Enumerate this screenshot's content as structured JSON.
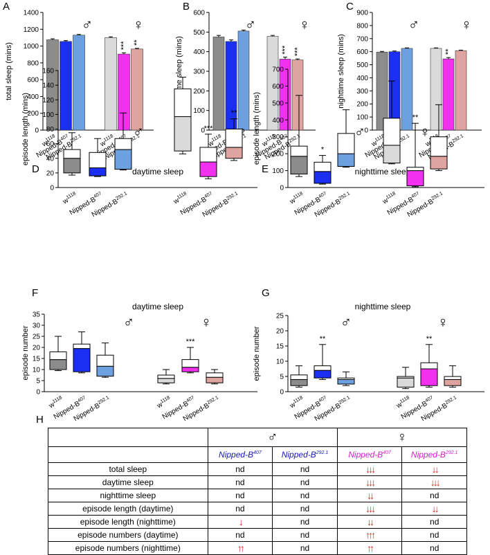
{
  "table": {
    "panel_letter": "H",
    "male_symbol": "♂",
    "female_symbol": "♀",
    "column_genes": [
      {
        "base": "Nipped-B",
        "sup": "407",
        "group": "male"
      },
      {
        "base": "Nipped-B",
        "sup": "292.1",
        "group": "male"
      },
      {
        "base": "Nipped-B",
        "sup": "407",
        "group": "female"
      },
      {
        "base": "Nipped-B",
        "sup": "292.1",
        "group": "female"
      }
    ],
    "rows": [
      {
        "label": "total sleep",
        "cells": [
          "nd",
          "nd",
          "↓↓↓",
          "↓↓"
        ]
      },
      {
        "label": "daytime sleep",
        "cells": [
          "nd",
          "nd",
          "↓↓↓",
          "↓↓↓"
        ]
      },
      {
        "label": "nighttime sleep",
        "cells": [
          "nd",
          "nd",
          "↓↓",
          "nd"
        ]
      },
      {
        "label": "episode length (daytime)",
        "cells": [
          "nd",
          "nd",
          "↓↓↓",
          "↓↓"
        ]
      },
      {
        "label": "episode length (nighttime)",
        "cells": [
          "↓",
          "nd",
          "↓↓",
          "nd"
        ]
      },
      {
        "label": "episode numbers (daytime)",
        "cells": [
          "nd",
          "nd",
          "↑↑↑",
          "nd"
        ]
      },
      {
        "label": "episode numbers (nighttime)",
        "cells": [
          "↑↑",
          "nd",
          "↑↑",
          "nd"
        ]
      }
    ]
  },
  "chart_data": [
    {
      "panel": "A",
      "type": "bar",
      "title": "",
      "ylabel": "total sleep (mins)",
      "ylim": [
        0,
        1400
      ],
      "yticks": [
        0,
        200,
        400,
        600,
        800,
        1000,
        1200,
        1400
      ],
      "groups": [
        {
          "symbol": "♂",
          "categories": [
            "w1118",
            "Nipped-B407",
            "Nipped-B292.1"
          ],
          "values": [
            1075,
            1055,
            1130
          ],
          "errors": [
            12,
            10,
            8
          ],
          "significance": [
            "",
            "",
            ""
          ]
        },
        {
          "symbol": "♀",
          "categories": [
            "w1118",
            "Nipped-B407",
            "Nipped-B292.1"
          ],
          "values": [
            1100,
            905,
            965
          ],
          "errors": [
            10,
            15,
            8
          ],
          "significance": [
            "",
            "***",
            "**"
          ]
        }
      ]
    },
    {
      "panel": "B",
      "type": "bar",
      "title": "",
      "ylabel": "daytime sleep (mins)",
      "ylim": [
        0,
        600
      ],
      "yticks": [
        0,
        100,
        200,
        300,
        400,
        500,
        600
      ],
      "groups": [
        {
          "symbol": "♂",
          "categories": [
            "w1118",
            "Nipped-B407",
            "Nipped-B292.1"
          ],
          "values": [
            475,
            452,
            505
          ],
          "errors": [
            8,
            8,
            5
          ],
          "significance": [
            "",
            "",
            ""
          ]
        },
        {
          "symbol": "♀",
          "categories": [
            "w1118",
            "Nipped-B407",
            "Nipped-B292.1"
          ],
          "values": [
            478,
            362,
            358
          ],
          "errors": [
            5,
            10,
            5
          ],
          "significance": [
            "",
            "***",
            "***"
          ]
        }
      ]
    },
    {
      "panel": "C",
      "type": "bar",
      "title": "",
      "ylabel": "nighttime sleep (mins)",
      "ylim": [
        0,
        900
      ],
      "yticks": [
        0,
        100,
        200,
        300,
        400,
        500,
        600,
        700,
        800,
        900
      ],
      "groups": [
        {
          "symbol": "♂",
          "categories": [
            "w1118",
            "Nipped-B407",
            "Nipped-B292.1"
          ],
          "values": [
            597,
            600,
            625
          ],
          "errors": [
            5,
            5,
            4
          ],
          "significance": [
            "",
            "",
            ""
          ]
        },
        {
          "symbol": "♀",
          "categories": [
            "w1118",
            "Nipped-B407",
            "Nipped-B292.1"
          ],
          "values": [
            625,
            545,
            608
          ],
          "errors": [
            4,
            10,
            4
          ],
          "significance": [
            "",
            "**",
            ""
          ]
        }
      ]
    },
    {
      "panel": "D",
      "type": "box",
      "title": "daytime sleep",
      "ylabel": "episode length (mins)",
      "ylim": [
        0,
        160
      ],
      "yticks": [
        0,
        20,
        40,
        60,
        80,
        100,
        120,
        140,
        160
      ],
      "groups": [
        {
          "symbol": "♂",
          "categories": [
            "w1118",
            "Nipped-B407",
            "Nipped-B292.1"
          ],
          "boxes": [
            {
              "min": 17,
              "q1": 20,
              "median": 40,
              "q3": 52,
              "max": 75,
              "sig": ""
            },
            {
              "min": 15,
              "q1": 16,
              "median": 27,
              "q3": 48,
              "max": 67,
              "sig": ""
            },
            {
              "min": 24,
              "q1": 25,
              "median": 52,
              "q3": 67,
              "max": 102,
              "sig": ""
            }
          ]
        },
        {
          "symbol": "♀",
          "categories": [
            "w1118",
            "Nipped-B407",
            "Nipped-B292.1"
          ],
          "boxes": [
            {
              "min": 46,
              "q1": 50,
              "median": 97,
              "q3": 135,
              "max": 151,
              "sig": ""
            },
            {
              "min": 12,
              "q1": 15,
              "median": 35,
              "q3": 55,
              "max": 73,
              "sig": "***"
            },
            {
              "min": 37,
              "q1": 40,
              "median": 55,
              "q3": 80,
              "max": 94,
              "sig": "**"
            }
          ]
        }
      ]
    },
    {
      "panel": "E",
      "type": "box",
      "title": "nighttime sleep",
      "ylabel": "episode length (mins)",
      "ylim": [
        0,
        700
      ],
      "yticks": [
        0,
        100,
        200,
        300,
        400,
        500,
        600,
        700
      ],
      "groups": [
        {
          "symbol": "♂",
          "categories": [
            "w1118",
            "Nipped-B407",
            "Nipped-B292.1"
          ],
          "boxes": [
            {
              "min": 65,
              "q1": 80,
              "median": 185,
              "q3": 245,
              "max": 545,
              "sig": ""
            },
            {
              "min": 20,
              "q1": 25,
              "median": 95,
              "q3": 150,
              "max": 190,
              "sig": "*"
            },
            {
              "min": 120,
              "q1": 125,
              "median": 200,
              "q3": 320,
              "max": 460,
              "sig": ""
            }
          ]
        },
        {
          "symbol": "♀",
          "categories": [
            "w1118",
            "Nipped-B407",
            "Nipped-B292.1"
          ],
          "boxes": [
            {
              "min": 140,
              "q1": 145,
              "median": 250,
              "q3": 410,
              "max": 630,
              "sig": ""
            },
            {
              "min": 5,
              "q1": 10,
              "median": 100,
              "q3": 120,
              "max": 380,
              "sig": "**"
            },
            {
              "min": 100,
              "q1": 110,
              "median": 185,
              "q3": 300,
              "max": 490,
              "sig": ""
            }
          ]
        }
      ]
    },
    {
      "panel": "F",
      "type": "box",
      "title": "daytime sleep",
      "ylabel": "episode number",
      "ylim": [
        0,
        35
      ],
      "yticks": [
        0,
        5,
        10,
        15,
        20,
        25,
        30,
        35
      ],
      "groups": [
        {
          "symbol": "♂",
          "categories": [
            "w1118",
            "Nipped-B407",
            "Nipped-B292.1"
          ],
          "boxes": [
            {
              "min": 9.5,
              "q1": 10,
              "median": 14.5,
              "q3": 18,
              "max": 25,
              "sig": ""
            },
            {
              "min": 8.5,
              "q1": 9,
              "median": 19.5,
              "q3": 21.5,
              "max": 27,
              "sig": ""
            },
            {
              "min": 6.5,
              "q1": 7,
              "median": 11.5,
              "q3": 16.5,
              "max": 22,
              "sig": ""
            }
          ]
        },
        {
          "symbol": "♀",
          "categories": [
            "w1118",
            "Nipped-B407",
            "Nipped-B292.1"
          ],
          "boxes": [
            {
              "min": 3.5,
              "q1": 4,
              "median": 6,
              "q3": 7.5,
              "max": 10,
              "sig": ""
            },
            {
              "min": 8.5,
              "q1": 9,
              "median": 11,
              "q3": 14.5,
              "max": 20,
              "sig": "***"
            },
            {
              "min": 3.5,
              "q1": 4,
              "median": 6.5,
              "q3": 8.5,
              "max": 10,
              "sig": ""
            }
          ]
        }
      ]
    },
    {
      "panel": "G",
      "type": "box",
      "title": "nighttime sleep",
      "ylabel": "episode number",
      "ylim": [
        0,
        25
      ],
      "yticks": [
        0,
        5,
        10,
        15,
        20,
        25
      ],
      "groups": [
        {
          "symbol": "♂",
          "categories": [
            "w1118",
            "Nipped-B407",
            "Nipped-B292.1"
          ],
          "boxes": [
            {
              "min": 1.5,
              "q1": 2,
              "median": 4,
              "q3": 5.5,
              "max": 8.5,
              "sig": ""
            },
            {
              "min": 4,
              "q1": 4.5,
              "median": 7,
              "q3": 8.5,
              "max": 15.5,
              "sig": "**"
            },
            {
              "min": 2,
              "q1": 2.5,
              "median": 4,
              "q3": 4.5,
              "max": 6.5,
              "sig": ""
            }
          ]
        },
        {
          "symbol": "♀",
          "categories": [
            "w1118",
            "Nipped-B407",
            "Nipped-B292.1"
          ],
          "boxes": [
            {
              "min": 1,
              "q1": 1.5,
              "median": 4.5,
              "q3": 5,
              "max": 8,
              "sig": ""
            },
            {
              "min": 1.5,
              "q1": 2,
              "median": 7.5,
              "q3": 9.5,
              "max": 15.5,
              "sig": "**"
            },
            {
              "min": 1.5,
              "q1": 2,
              "median": 4,
              "q3": 5,
              "max": 8.5,
              "sig": ""
            }
          ]
        }
      ]
    }
  ],
  "colors": {
    "male": [
      "#8c8c8c",
      "#1b2ff2",
      "#6ca0de"
    ],
    "female": [
      "#dadada",
      "#f230f0",
      "#dfa3a0"
    ],
    "arrow": "#e0201d",
    "male_header": "#1616b4",
    "female_header": "#d11dc8"
  }
}
